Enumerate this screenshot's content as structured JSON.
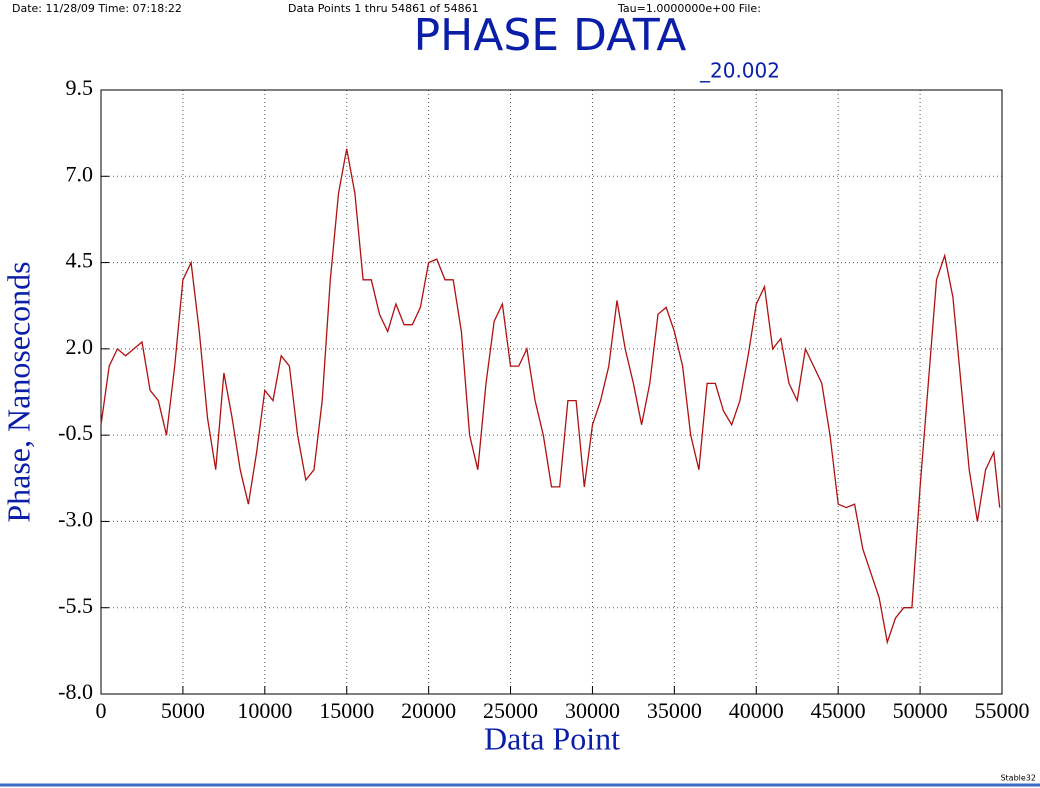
{
  "chart_data": {
    "type": "line",
    "header": {
      "date": "Date: 11/28/09  Time: 07:18:22",
      "points": "Data Points 1 thru 54861 of 54861",
      "tau": "Tau=1.0000000e+00 File:"
    },
    "title": "PHASE DATA",
    "subtitle": "_20.002",
    "x_label": "Data  Point",
    "y_label": "Phase,  Nanoseconds",
    "footer": "Stable32",
    "xlim": [
      0,
      55000
    ],
    "ylim": [
      -8,
      9.5
    ],
    "xticks": [
      0,
      5000,
      10000,
      15000,
      20000,
      25000,
      30000,
      35000,
      40000,
      45000,
      50000,
      55000
    ],
    "yticks": [
      {
        "value": -8,
        "label": "-8.0"
      },
      -5.5,
      {
        "value": -3,
        "label": "-3.0"
      },
      -0.5,
      {
        "value": 2,
        "label": "2.0"
      },
      4.5,
      {
        "value": 7,
        "label": "7.0"
      },
      9.5
    ],
    "grid": true,
    "x": [
      0,
      500,
      1000,
      1500,
      2000,
      2500,
      3000,
      3500,
      4000,
      4500,
      5000,
      5500,
      6000,
      6500,
      7000,
      7500,
      8000,
      8500,
      9000,
      9500,
      10000,
      10500,
      11000,
      11500,
      12000,
      12500,
      13000,
      13500,
      14000,
      14500,
      15000,
      15500,
      16000,
      16500,
      17000,
      17500,
      18000,
      18500,
      19000,
      19500,
      20000,
      20500,
      21000,
      21500,
      22000,
      22500,
      23000,
      23500,
      24000,
      24500,
      25000,
      25500,
      26000,
      26500,
      27000,
      27500,
      28000,
      28500,
      29000,
      29500,
      30000,
      30500,
      31000,
      31500,
      32000,
      32500,
      33000,
      33500,
      34000,
      34500,
      35000,
      35500,
      36000,
      36500,
      37000,
      37500,
      38000,
      38500,
      39000,
      39500,
      40000,
      40500,
      41000,
      41500,
      42000,
      42500,
      43000,
      43500,
      44000,
      44500,
      45000,
      45500,
      46000,
      46500,
      47000,
      47500,
      48000,
      48500,
      49000,
      49500,
      50000,
      50500,
      51000,
      51500,
      52000,
      52500,
      53000,
      53500,
      54000,
      54500,
      54861
    ],
    "series": [
      {
        "name": "Phase",
        "color": "#b01010",
        "values": [
          -0.2,
          1.5,
          2.0,
          1.8,
          2.0,
          2.2,
          0.8,
          0.5,
          -0.5,
          1.5,
          4.0,
          4.5,
          2.5,
          0,
          -1.5,
          1.3,
          0,
          -1.5,
          -2.5,
          -1.0,
          0.8,
          0.5,
          1.8,
          1.5,
          -0.5,
          -1.8,
          -1.5,
          0.5,
          4.0,
          6.5,
          7.8,
          6.5,
          4.0,
          4.0,
          3.0,
          2.5,
          3.3,
          2.7,
          2.7,
          3.2,
          4.5,
          4.6,
          4.0,
          4.0,
          2.5,
          -0.5,
          -1.5,
          1.0,
          2.8,
          3.3,
          1.5,
          1.5,
          2.0,
          0.5,
          -0.5,
          -2.0,
          -2.0,
          0.5,
          0.5,
          -2.0,
          -0.2,
          0.5,
          1.5,
          3.4,
          2.0,
          1.0,
          -0.2,
          1.0,
          3.0,
          3.2,
          2.5,
          1.5,
          -0.5,
          -1.5,
          1.0,
          1.0,
          0.2,
          -0.2,
          0.5,
          1.8,
          3.3,
          3.8,
          2.0,
          2.3,
          1.0,
          0.5,
          2.0,
          1.5,
          1.0,
          -0.5,
          -2.5,
          -2.6,
          -2.5,
          -3.8,
          -4.5,
          -5.2,
          -6.5,
          -5.8,
          -5.5,
          -5.5,
          -2.0,
          1.0,
          4.0,
          4.7,
          3.5,
          1.0,
          -1.5,
          -3.0,
          -1.5,
          -1.0,
          -2.6
        ]
      }
    ]
  }
}
